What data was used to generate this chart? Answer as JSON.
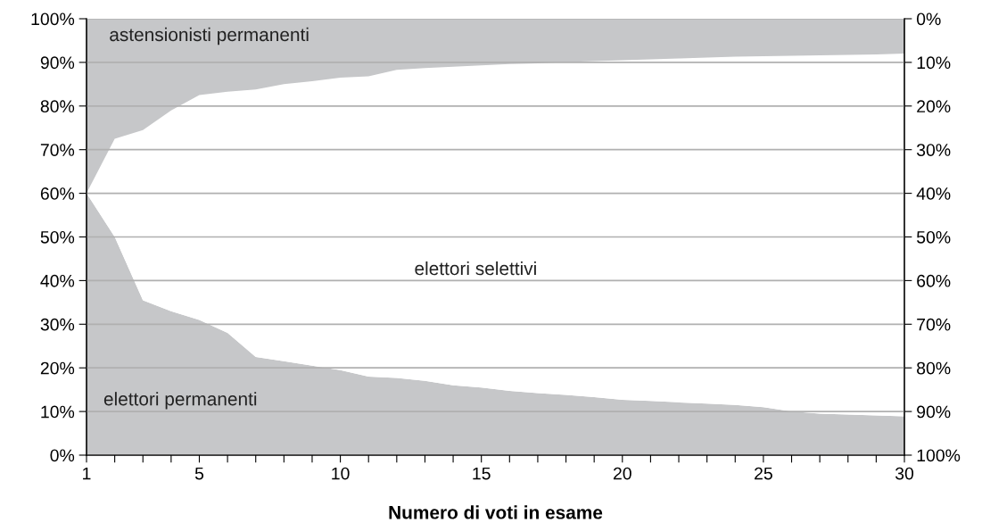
{
  "chart_data": {
    "type": "area",
    "stacked": true,
    "xlabel": "Numero di voti in esame",
    "x": [
      1,
      2,
      3,
      4,
      5,
      6,
      7,
      8,
      9,
      10,
      11,
      12,
      13,
      14,
      15,
      16,
      17,
      18,
      19,
      20,
      21,
      22,
      23,
      24,
      25,
      26,
      27,
      28,
      29,
      30
    ],
    "series": [
      {
        "name": "elettori permanenti",
        "color": "#c6c7c9",
        "values": [
          60,
          50,
          35.5,
          33,
          31,
          28,
          22.5,
          21.5,
          20.5,
          19.5,
          18,
          17.7,
          17,
          16,
          15.5,
          14.7,
          14.2,
          13.8,
          13.3,
          12.7,
          12.4,
          12.1,
          11.8,
          11.5,
          11,
          10,
          9.5,
          9.3,
          9.1,
          8.9
        ]
      },
      {
        "name": "elettori selettivi",
        "color": "#ffffff",
        "values": [
          0,
          22.5,
          39,
          46,
          51.5,
          55.3,
          61.3,
          63.5,
          65.2,
          67,
          68.8,
          70.6,
          71.7,
          73,
          73.8,
          74.9,
          75.6,
          76.3,
          77,
          77.8,
          78.3,
          78.8,
          79.3,
          79.8,
          80.4,
          81.5,
          82.1,
          82.4,
          82.7,
          83.1
        ]
      },
      {
        "name": "astensionisti permanenti",
        "color": "#c6c7c9",
        "values": [
          40,
          27.5,
          25.5,
          21,
          17.5,
          16.7,
          16.2,
          15,
          14.3,
          13.5,
          13.2,
          11.7,
          11.3,
          11,
          10.7,
          10.4,
          10.2,
          9.9,
          9.7,
          9.5,
          9.3,
          9.1,
          8.9,
          8.7,
          8.6,
          8.5,
          8.4,
          8.3,
          8.2,
          8
        ]
      }
    ],
    "xlim": [
      1,
      30
    ],
    "xticks": [
      1,
      {
        "value": 2,
        "label": null
      },
      {
        "value": 3,
        "label": null
      },
      {
        "value": 4,
        "label": null
      },
      5,
      {
        "value": 6,
        "label": null
      },
      {
        "value": 7,
        "label": null
      },
      {
        "value": 8,
        "label": null
      },
      {
        "value": 9,
        "label": null
      },
      10,
      {
        "value": 11,
        "label": null
      },
      {
        "value": 12,
        "label": null
      },
      {
        "value": 13,
        "label": null
      },
      {
        "value": 14,
        "label": null
      },
      15,
      {
        "value": 16,
        "label": null
      },
      {
        "value": 17,
        "label": null
      },
      {
        "value": 18,
        "label": null
      },
      {
        "value": 19,
        "label": null
      },
      20,
      {
        "value": 21,
        "label": null
      },
      {
        "value": 22,
        "label": null
      },
      {
        "value": 23,
        "label": null
      },
      {
        "value": 24,
        "label": null
      },
      25,
      {
        "value": 26,
        "label": null
      },
      {
        "value": 27,
        "label": null
      },
      {
        "value": 28,
        "label": null
      },
      {
        "value": 29,
        "label": null
      },
      30
    ],
    "ylim": [
      0,
      100
    ],
    "yticks": [
      {
        "value": 0,
        "label": "0%"
      },
      {
        "value": 10,
        "label": "10%"
      },
      {
        "value": 20,
        "label": "20%"
      },
      {
        "value": 30,
        "label": "30%"
      },
      {
        "value": 40,
        "label": "40%"
      },
      {
        "value": 50,
        "label": "50%"
      },
      {
        "value": 60,
        "label": "60%"
      },
      {
        "value": 70,
        "label": "70%"
      },
      {
        "value": 80,
        "label": "80%"
      },
      {
        "value": 90,
        "label": "90%"
      },
      {
        "value": 100,
        "label": "100%"
      }
    ],
    "y2lim": [
      100,
      0
    ],
    "y2ticks": [
      {
        "value": 0,
        "label": "0%"
      },
      {
        "value": 10,
        "label": "10%"
      },
      {
        "value": 20,
        "label": "20%"
      },
      {
        "value": 30,
        "label": "30%"
      },
      {
        "value": 40,
        "label": "40%"
      },
      {
        "value": 50,
        "label": "50%"
      },
      {
        "value": 60,
        "label": "60%"
      },
      {
        "value": 70,
        "label": "70%"
      },
      {
        "value": 80,
        "label": "80%"
      },
      {
        "value": 90,
        "label": "90%"
      },
      {
        "value": 100,
        "label": "100%"
      }
    ],
    "grid": "y"
  }
}
